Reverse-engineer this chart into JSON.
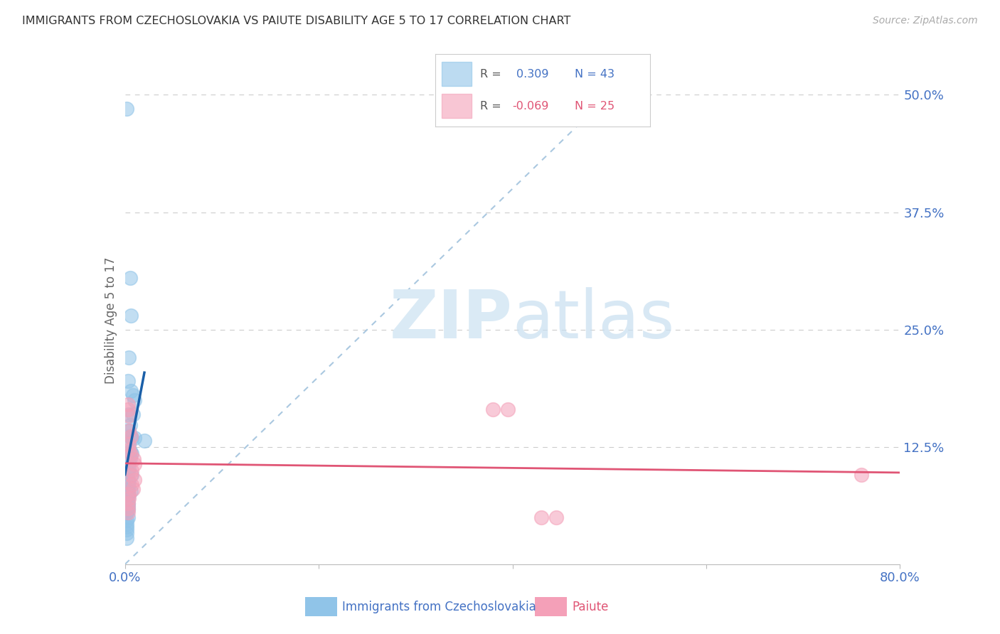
{
  "title": "IMMIGRANTS FROM CZECHOSLOVAKIA VS PAIUTE DISABILITY AGE 5 TO 17 CORRELATION CHART",
  "source": "Source: ZipAtlas.com",
  "xlabel_blue": "Immigrants from Czechoslovakia",
  "xlabel_pink": "Paiute",
  "ylabel": "Disability Age 5 to 17",
  "xlim": [
    0.0,
    0.8
  ],
  "ylim": [
    0.0,
    0.52
  ],
  "R_blue": 0.309,
  "N_blue": 43,
  "R_pink": -0.069,
  "N_pink": 25,
  "blue_color": "#90c4e8",
  "pink_color": "#f4a0b8",
  "blue_line_color": "#1a5fa8",
  "pink_line_color": "#e05575",
  "blue_scatter": [
    [
      0.002,
      0.485
    ],
    [
      0.005,
      0.305
    ],
    [
      0.006,
      0.265
    ],
    [
      0.004,
      0.22
    ],
    [
      0.003,
      0.195
    ],
    [
      0.006,
      0.185
    ],
    [
      0.008,
      0.18
    ],
    [
      0.01,
      0.175
    ],
    [
      0.004,
      0.16
    ],
    [
      0.008,
      0.16
    ],
    [
      0.005,
      0.148
    ],
    [
      0.004,
      0.142
    ],
    [
      0.005,
      0.136
    ],
    [
      0.007,
      0.135
    ],
    [
      0.01,
      0.135
    ],
    [
      0.02,
      0.132
    ],
    [
      0.004,
      0.127
    ],
    [
      0.005,
      0.12
    ],
    [
      0.007,
      0.118
    ],
    [
      0.005,
      0.113
    ],
    [
      0.004,
      0.108
    ],
    [
      0.004,
      0.103
    ],
    [
      0.003,
      0.098
    ],
    [
      0.007,
      0.095
    ],
    [
      0.003,
      0.09
    ],
    [
      0.004,
      0.088
    ],
    [
      0.003,
      0.084
    ],
    [
      0.003,
      0.08
    ],
    [
      0.006,
      0.078
    ],
    [
      0.003,
      0.076
    ],
    [
      0.003,
      0.073
    ],
    [
      0.003,
      0.07
    ],
    [
      0.003,
      0.065
    ],
    [
      0.003,
      0.062
    ],
    [
      0.003,
      0.058
    ],
    [
      0.002,
      0.055
    ],
    [
      0.003,
      0.05
    ],
    [
      0.002,
      0.047
    ],
    [
      0.002,
      0.043
    ],
    [
      0.002,
      0.04
    ],
    [
      0.002,
      0.037
    ],
    [
      0.002,
      0.033
    ],
    [
      0.002,
      0.028
    ]
  ],
  "pink_scatter": [
    [
      0.003,
      0.17
    ],
    [
      0.003,
      0.165
    ],
    [
      0.004,
      0.158
    ],
    [
      0.004,
      0.142
    ],
    [
      0.006,
      0.136
    ],
    [
      0.004,
      0.128
    ],
    [
      0.004,
      0.122
    ],
    [
      0.006,
      0.117
    ],
    [
      0.009,
      0.112
    ],
    [
      0.01,
      0.107
    ],
    [
      0.007,
      0.1
    ],
    [
      0.006,
      0.095
    ],
    [
      0.01,
      0.09
    ],
    [
      0.007,
      0.085
    ],
    [
      0.008,
      0.08
    ],
    [
      0.004,
      0.075
    ],
    [
      0.004,
      0.07
    ],
    [
      0.003,
      0.065
    ],
    [
      0.003,
      0.06
    ],
    [
      0.003,
      0.055
    ],
    [
      0.38,
      0.165
    ],
    [
      0.395,
      0.165
    ],
    [
      0.43,
      0.05
    ],
    [
      0.445,
      0.05
    ],
    [
      0.76,
      0.095
    ]
  ],
  "diag_line_color": "#aac8e0",
  "watermark": "ZIPatlas",
  "watermark_color": "#daeaf5",
  "background_color": "#ffffff",
  "grid_color": "#cccccc",
  "tick_color": "#4472c4",
  "spine_color": "#bbbbbb"
}
